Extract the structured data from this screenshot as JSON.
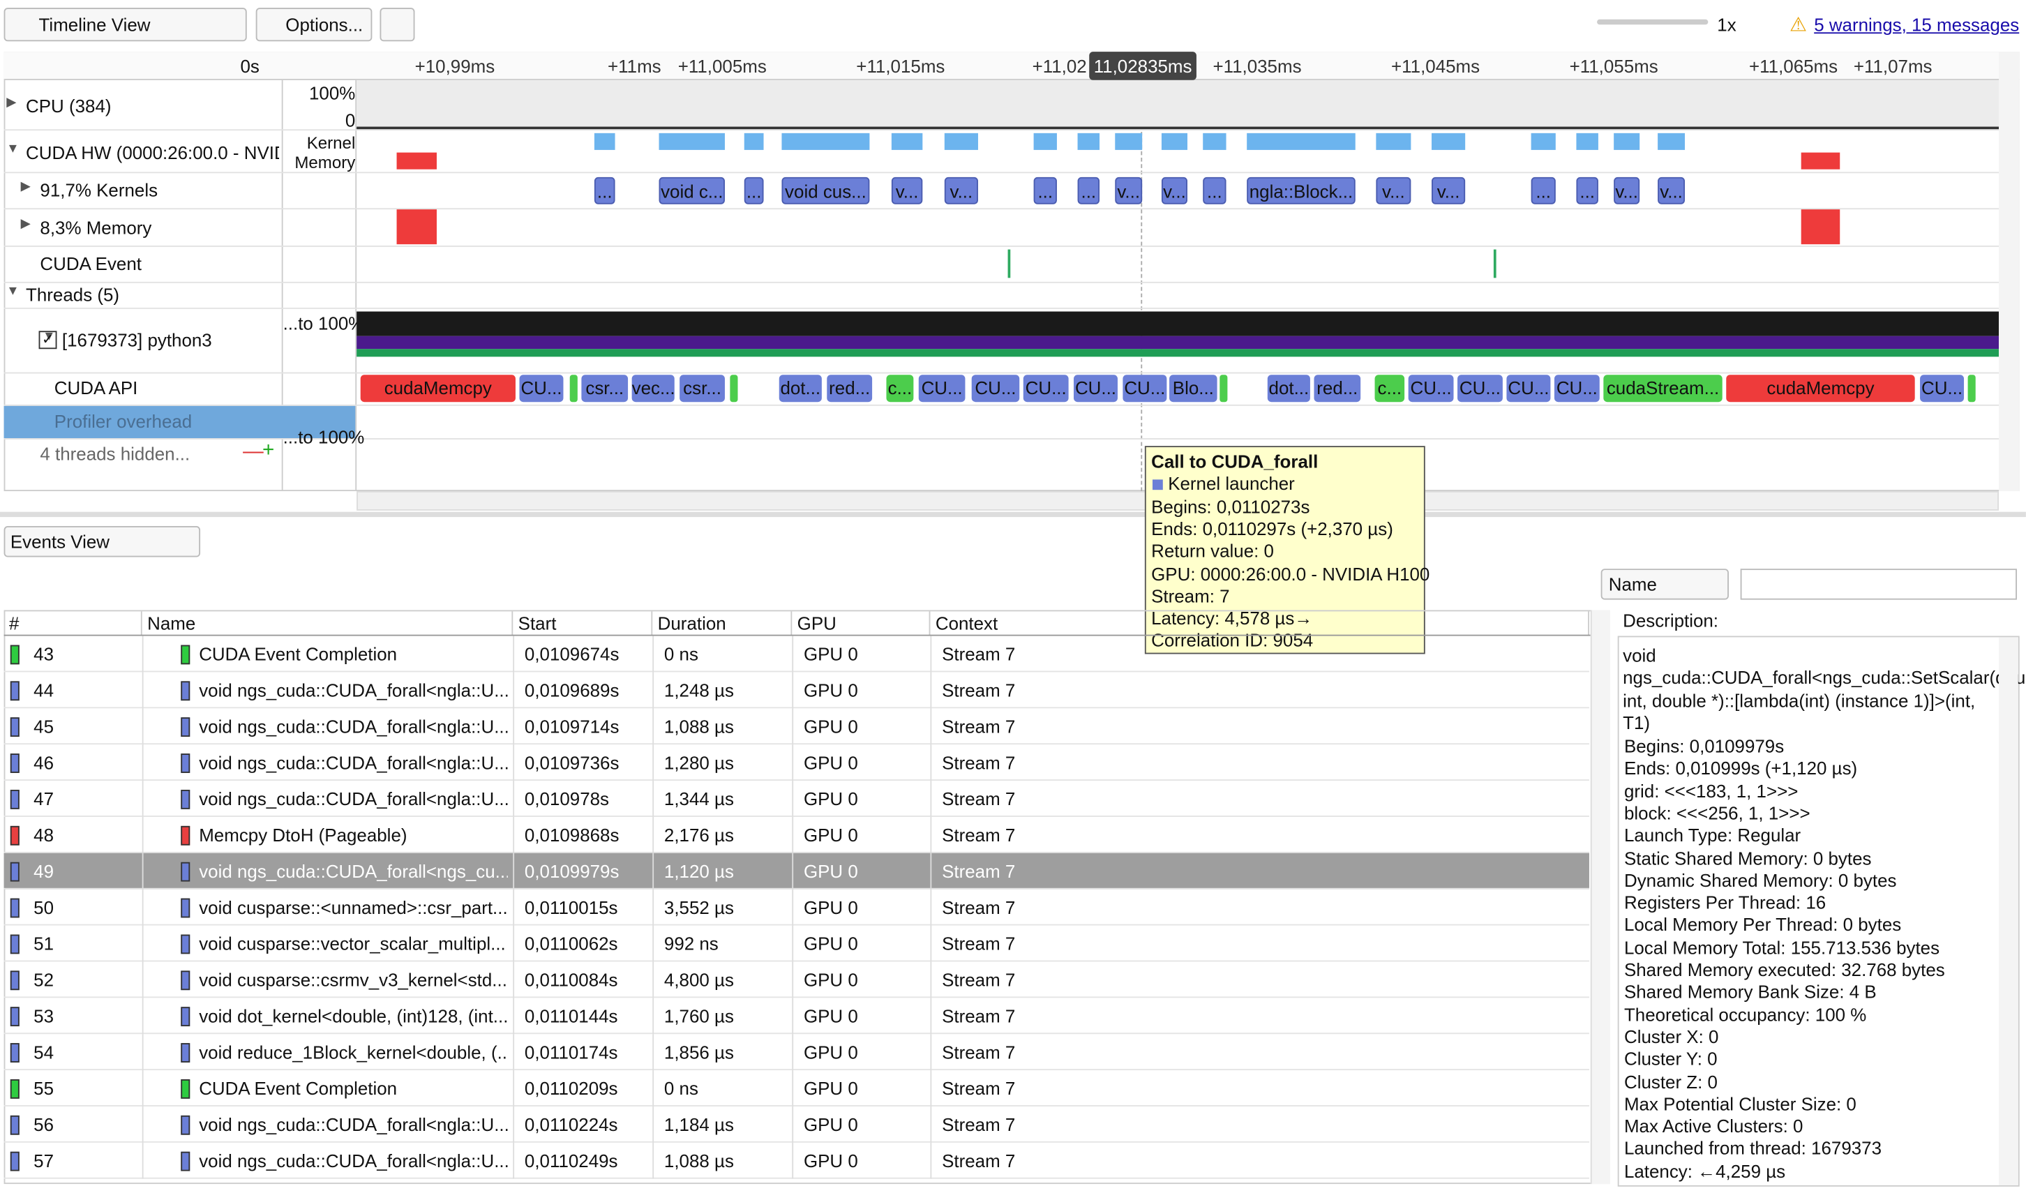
{
  "toolbar": {
    "view": "Timeline View",
    "options": "Options...",
    "zoom_level": "1x",
    "warnings": "5 warnings, 15 messages"
  },
  "timeline": {
    "offset": "0s",
    "cursor_label": "11,02835ms",
    "ruler": [
      "+10,99ms",
      "+11ms",
      "+11,005ms",
      "+11,015ms",
      "+11,02",
      "+11,035ms",
      "+11,045ms",
      "+11,055ms",
      "+11,065ms",
      "+11,07ms"
    ],
    "rows": [
      {
        "label": "CPU (384)",
        "scale": [
          "100%",
          "0"
        ]
      },
      {
        "label": "CUDA HW (0000:26:00.0 - NVIDI",
        "scale": [
          "Kernel",
          "Memory"
        ]
      },
      {
        "label": "91,7% Kernels"
      },
      {
        "label": "8,3% Memory"
      },
      {
        "label": "CUDA Event"
      },
      {
        "label": "Threads (5)"
      },
      {
        "label": "[1679373] python3",
        "scale": [
          "...to 100%"
        ]
      },
      {
        "label": "CUDA API"
      },
      {
        "label": "Profiler overhead"
      },
      {
        "label": "4 threads hidden...",
        "scale": [
          "...to 100%"
        ]
      }
    ],
    "kernels": [
      "...",
      "void c...",
      "...",
      "void cus...",
      "v...",
      "v...",
      "...",
      "...",
      "v...",
      "v...",
      "...",
      "ngla::Block...",
      "v...",
      "v...",
      "...",
      "...",
      "v...",
      "v..."
    ],
    "cuda_api": [
      "cudaMemcpy",
      "CU...",
      "csr...",
      "vec...",
      "csr...",
      "dot...",
      "red...",
      "c...",
      "CU...",
      "CU...",
      "CU...",
      "CU...",
      "CU...",
      "Blo...",
      "dot...",
      "red...",
      "c...",
      "CU...",
      "CU...",
      "CU...",
      "CU...",
      "cudaStream...",
      "cudaMemcpy",
      "CU..."
    ]
  },
  "tooltip": [
    "Call to CUDA_forall",
    "Kernel launcher",
    "Begins: 0,0110273s",
    "Ends: 0,0110297s (+2,370 µs)",
    "Return value: 0",
    "GPU: 0000:26:00.0 - NVIDIA H100",
    "Stream: 7",
    "Latency: 4,578 µs→",
    "Correlation ID: 9054"
  ],
  "events": {
    "view": "Events View",
    "filter": "Name",
    "columns": [
      "#",
      "Name",
      "Start",
      "Duration",
      "GPU",
      "Context"
    ],
    "rows": [
      {
        "color": "#2ecc40",
        "cells": [
          "43",
          "CUDA Event Completion",
          "0,0109674s",
          "0 ns",
          "GPU 0",
          "Stream 7"
        ]
      },
      {
        "color": "#6b7fd7",
        "cells": [
          "44",
          "void ngs_cuda::CUDA_forall<ngla::U...",
          "0,0109689s",
          "1,248 µs",
          "GPU 0",
          "Stream 7"
        ]
      },
      {
        "color": "#6b7fd7",
        "cells": [
          "45",
          "void ngs_cuda::CUDA_forall<ngla::U...",
          "0,0109714s",
          "1,088 µs",
          "GPU 0",
          "Stream 7"
        ]
      },
      {
        "color": "#6b7fd7",
        "cells": [
          "46",
          "void ngs_cuda::CUDA_forall<ngla::U...",
          "0,0109736s",
          "1,280 µs",
          "GPU 0",
          "Stream 7"
        ]
      },
      {
        "color": "#6b7fd7",
        "cells": [
          "47",
          "void ngs_cuda::CUDA_forall<ngla::U...",
          "0,010978s",
          "1,344 µs",
          "GPU 0",
          "Stream 7"
        ]
      },
      {
        "color": "#e84040",
        "cells": [
          "48",
          "Memcpy DtoH (Pageable)",
          "0,0109868s",
          "2,176 µs",
          "GPU 0",
          "Stream 7"
        ]
      },
      {
        "color": "#6b7fd7",
        "selected": true,
        "cells": [
          "49",
          "void ngs_cuda::CUDA_forall<ngs_cu...",
          "0,0109979s",
          "1,120 µs",
          "GPU 0",
          "Stream 7"
        ]
      },
      {
        "color": "#6b7fd7",
        "cells": [
          "50",
          "void cusparse::<unnamed>::csr_part...",
          "0,0110015s",
          "3,552 µs",
          "GPU 0",
          "Stream 7"
        ]
      },
      {
        "color": "#6b7fd7",
        "cells": [
          "51",
          "void cusparse::vector_scalar_multipl...",
          "0,0110062s",
          "992 ns",
          "GPU 0",
          "Stream 7"
        ]
      },
      {
        "color": "#6b7fd7",
        "cells": [
          "52",
          "void cusparse::csrmv_v3_kernel<std...",
          "0,0110084s",
          "4,800 µs",
          "GPU 0",
          "Stream 7"
        ]
      },
      {
        "color": "#6b7fd7",
        "cells": [
          "53",
          "void dot_kernel<double, (int)128, (int...",
          "0,0110144s",
          "1,760 µs",
          "GPU 0",
          "Stream 7"
        ]
      },
      {
        "color": "#6b7fd7",
        "cells": [
          "54",
          "void reduce_1Block_kernel<double, (...",
          "0,0110174s",
          "1,856 µs",
          "GPU 0",
          "Stream 7"
        ]
      },
      {
        "color": "#2ecc40",
        "cells": [
          "55",
          "CUDA Event Completion",
          "0,0110209s",
          "0 ns",
          "GPU 0",
          "Stream 7"
        ]
      },
      {
        "color": "#6b7fd7",
        "cells": [
          "56",
          "void ngs_cuda::CUDA_forall<ngla::U...",
          "0,0110224s",
          "1,184 µs",
          "GPU 0",
          "Stream 7"
        ]
      },
      {
        "color": "#6b7fd7",
        "cells": [
          "57",
          "void ngs_cuda::CUDA_forall<ngla::U...",
          "0,0110249s",
          "1,088 µs",
          "GPU 0",
          "Stream 7"
        ]
      }
    ]
  },
  "description": {
    "title": "Description:",
    "signature": "void ngs_cuda::CUDA_forall<ngs_cuda::SetScalar(double, int, double *)::[lambda(int) (instance 1)]>(int, T1)",
    "lines": [
      "Begins: 0,0109979s",
      "Ends: 0,010999s (+1,120 µs)",
      "grid:  <<<183, 1, 1>>>",
      "block: <<<256, 1, 1>>>",
      "Launch Type: Regular",
      "Static Shared Memory: 0 bytes",
      "Dynamic Shared Memory: 0 bytes",
      "Registers Per Thread: 16",
      "Local Memory Per Thread: 0 bytes",
      "Local Memory Total: 155.713.536 bytes",
      "Shared Memory executed: 32.768 bytes",
      "Shared Memory Bank Size: 4 B",
      "Theoretical occupancy: 100 %",
      "Cluster X: 0",
      "Cluster Y: 0",
      "Cluster Z: 0",
      "Max Potential Cluster Size: 0",
      "Max Active Clusters: 0",
      "Launched from thread: 1679373",
      "Latency: ←4,259 µs"
    ]
  }
}
